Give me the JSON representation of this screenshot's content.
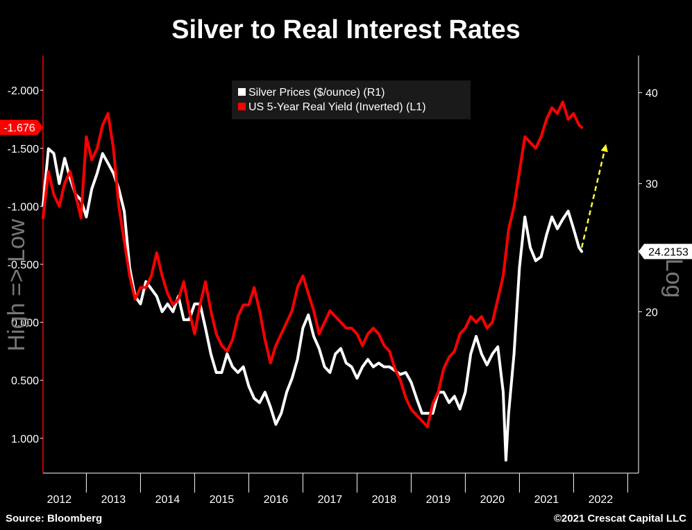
{
  "title": "Silver to Real Interest Rates",
  "footer": {
    "source": "Source: Bloomberg",
    "copyright": "©2021 Crescat Capital LLC"
  },
  "colors": {
    "background": "#000000",
    "silver": "#ffffff",
    "real_yield": "#ff0000",
    "arrow": "#ffff33",
    "axis": "#ffffff"
  },
  "chart_data": {
    "type": "line",
    "title": "Silver to Real Interest Rates",
    "x_tick_labels": [
      "2012",
      "2013",
      "2014",
      "2015",
      "2016",
      "2017",
      "2018",
      "2019",
      "2020",
      "2021",
      "2022"
    ],
    "xlim": [
      2011.7,
      2022.7
    ],
    "left_axis": {
      "label": "High => Low",
      "inverted": true,
      "ylim": [
        1.3,
        -2.3
      ],
      "ticks": [
        -2.0,
        -1.5,
        -1.0,
        -0.5,
        0.0,
        0.5,
        1.0
      ],
      "tick_labels": [
        "-2.000",
        "-1.500",
        "-1.000",
        "-0.500",
        "0.000",
        "0.500",
        "1.000"
      ],
      "last_value_label": "-1.676"
    },
    "right_axis": {
      "label": "Log",
      "scale": "log",
      "ylim": [
        12,
        45
      ],
      "ticks": [
        20,
        30,
        40
      ],
      "tick_labels": [
        "20",
        "30",
        "40"
      ],
      "last_value_label": "24.2153"
    },
    "legend": {
      "position": "top-center"
    },
    "arrow": {
      "from": [
        2021.65,
        24.5
      ],
      "to": [
        2022.1,
        34.0
      ],
      "axis": "right",
      "style": "dashed"
    },
    "series": [
      {
        "name": "Silver Prices ($/ounce) (R1)",
        "axis": "right",
        "color": "#ffffff",
        "x": [
          2011.7,
          2011.8,
          2011.9,
          2012.0,
          2012.1,
          2012.2,
          2012.3,
          2012.4,
          2012.5,
          2012.6,
          2012.7,
          2012.8,
          2012.9,
          2013.0,
          2013.1,
          2013.2,
          2013.3,
          2013.4,
          2013.5,
          2013.6,
          2013.7,
          2013.8,
          2013.9,
          2014.0,
          2014.1,
          2014.2,
          2014.3,
          2014.4,
          2014.5,
          2014.6,
          2014.7,
          2014.8,
          2014.9,
          2015.0,
          2015.1,
          2015.2,
          2015.3,
          2015.4,
          2015.5,
          2015.6,
          2015.7,
          2015.8,
          2015.9,
          2016.0,
          2016.1,
          2016.2,
          2016.3,
          2016.4,
          2016.5,
          2016.6,
          2016.7,
          2016.8,
          2016.9,
          2017.0,
          2017.1,
          2017.2,
          2017.3,
          2017.4,
          2017.5,
          2017.6,
          2017.7,
          2017.8,
          2017.9,
          2018.0,
          2018.1,
          2018.2,
          2018.3,
          2018.4,
          2018.5,
          2018.6,
          2018.7,
          2018.8,
          2018.9,
          2019.0,
          2019.1,
          2019.2,
          2019.3,
          2019.4,
          2019.5,
          2019.6,
          2019.7,
          2019.8,
          2019.9,
          2020.0,
          2020.1,
          2020.2,
          2020.25,
          2020.3,
          2020.4,
          2020.5,
          2020.6,
          2020.7,
          2020.8,
          2020.9,
          2021.0,
          2021.1,
          2021.2,
          2021.3,
          2021.4,
          2021.5,
          2021.6,
          2021.65
        ],
        "values": [
          28.0,
          33.5,
          33.0,
          30.0,
          32.5,
          30.5,
          29.0,
          28.5,
          27.0,
          29.5,
          31.0,
          33.0,
          32.0,
          31.0,
          29.5,
          27.5,
          23.0,
          21.0,
          20.5,
          22.0,
          21.5,
          21.0,
          20.0,
          20.5,
          20.0,
          21.0,
          19.5,
          19.5,
          20.5,
          20.5,
          19.0,
          17.5,
          16.5,
          16.5,
          17.5,
          16.8,
          16.5,
          16.8,
          15.8,
          15.2,
          15.0,
          15.5,
          14.8,
          14.0,
          14.5,
          15.5,
          16.2,
          17.2,
          19.0,
          19.8,
          18.5,
          17.8,
          16.8,
          16.5,
          17.5,
          17.8,
          17.0,
          16.8,
          16.2,
          16.8,
          17.2,
          16.8,
          17.0,
          16.8,
          16.8,
          16.6,
          16.4,
          16.5,
          16.0,
          15.2,
          14.5,
          14.5,
          14.5,
          15.5,
          15.5,
          15.0,
          15.3,
          14.7,
          15.5,
          17.5,
          18.5,
          17.5,
          16.9,
          17.5,
          17.9,
          15.5,
          12.5,
          14.5,
          17.5,
          23.0,
          27.0,
          24.5,
          23.5,
          23.8,
          25.5,
          27.0,
          26.0,
          26.8,
          27.5,
          26.0,
          24.5,
          24.2
        ]
      },
      {
        "name": "US 5-Year Real Yield (Inverted) (L1)",
        "axis": "left",
        "color": "#ff0000",
        "x": [
          2011.7,
          2011.8,
          2011.9,
          2012.0,
          2012.1,
          2012.2,
          2012.3,
          2012.4,
          2012.5,
          2012.6,
          2012.7,
          2012.8,
          2012.9,
          2013.0,
          2013.1,
          2013.2,
          2013.3,
          2013.4,
          2013.5,
          2013.6,
          2013.7,
          2013.8,
          2013.9,
          2014.0,
          2014.1,
          2014.2,
          2014.3,
          2014.4,
          2014.5,
          2014.6,
          2014.7,
          2014.8,
          2014.9,
          2015.0,
          2015.1,
          2015.2,
          2015.3,
          2015.4,
          2015.5,
          2015.6,
          2015.7,
          2015.8,
          2015.9,
          2016.0,
          2016.1,
          2016.2,
          2016.3,
          2016.4,
          2016.5,
          2016.6,
          2016.7,
          2016.8,
          2016.9,
          2017.0,
          2017.1,
          2017.2,
          2017.3,
          2017.4,
          2017.5,
          2017.6,
          2017.7,
          2017.8,
          2017.9,
          2018.0,
          2018.1,
          2018.2,
          2018.3,
          2018.4,
          2018.5,
          2018.6,
          2018.7,
          2018.8,
          2018.9,
          2019.0,
          2019.1,
          2019.2,
          2019.3,
          2019.4,
          2019.5,
          2019.6,
          2019.7,
          2019.8,
          2019.9,
          2020.0,
          2020.1,
          2020.2,
          2020.25,
          2020.3,
          2020.4,
          2020.5,
          2020.6,
          2020.7,
          2020.8,
          2020.9,
          2021.0,
          2021.1,
          2021.2,
          2021.3,
          2021.4,
          2021.5,
          2021.6,
          2021.65
        ],
        "values": [
          -0.9,
          -1.3,
          -1.1,
          -1.0,
          -1.2,
          -1.3,
          -1.1,
          -0.9,
          -1.6,
          -1.4,
          -1.5,
          -1.7,
          -1.8,
          -1.5,
          -1.0,
          -0.7,
          -0.4,
          -0.2,
          -0.3,
          -0.3,
          -0.4,
          -0.6,
          -0.4,
          -0.25,
          -0.15,
          -0.2,
          -0.35,
          -0.1,
          0.1,
          -0.15,
          -0.35,
          -0.1,
          0.1,
          0.2,
          0.25,
          0.15,
          -0.05,
          -0.15,
          -0.15,
          -0.3,
          -0.1,
          0.15,
          0.35,
          0.2,
          0.1,
          0.0,
          -0.1,
          -0.3,
          -0.4,
          -0.25,
          -0.1,
          0.1,
          0.0,
          -0.1,
          -0.05,
          0.0,
          0.05,
          0.05,
          0.1,
          0.2,
          0.1,
          0.05,
          0.1,
          0.2,
          0.25,
          0.4,
          0.5,
          0.65,
          0.75,
          0.8,
          0.85,
          0.9,
          0.7,
          0.6,
          0.4,
          0.3,
          0.25,
          0.1,
          0.05,
          -0.05,
          0.0,
          -0.05,
          0.05,
          0.0,
          -0.2,
          -0.4,
          -0.6,
          -0.8,
          -1.0,
          -1.3,
          -1.6,
          -1.55,
          -1.5,
          -1.6,
          -1.75,
          -1.85,
          -1.8,
          -1.9,
          -1.75,
          -1.8,
          -1.7,
          -1.68
        ]
      }
    ]
  }
}
